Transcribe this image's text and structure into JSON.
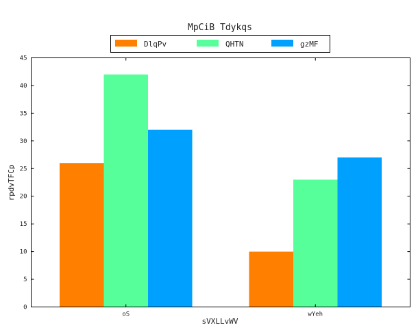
{
  "chart_data": {
    "type": "bar",
    "title": "MpCiB Tdykqs",
    "xlabel": "sVXLLvWV",
    "ylabel": "rpdvTFCp",
    "categories": [
      "oS",
      "wYeh"
    ],
    "series": [
      {
        "name": "DlqPv",
        "color": "#ff7f00",
        "values": [
          26,
          10
        ]
      },
      {
        "name": "QHTN",
        "color": "#57ff9b",
        "values": [
          42,
          23
        ]
      },
      {
        "name": "gzMF",
        "color": "#00a0ff",
        "values": [
          32,
          27
        ]
      }
    ],
    "ylim": [
      0,
      45
    ],
    "yticks": [
      0,
      5,
      10,
      15,
      20,
      25,
      30,
      35,
      40,
      45
    ],
    "grid": false,
    "legend_position": "top-center"
  }
}
